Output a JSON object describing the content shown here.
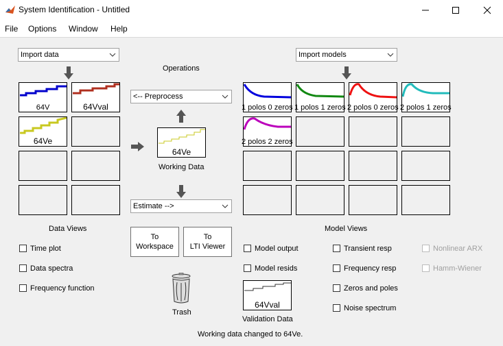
{
  "window": {
    "title": "System Identification - Untitled"
  },
  "menu": [
    "File",
    "Options",
    "Window",
    "Help"
  ],
  "import_data": {
    "label": "Import data"
  },
  "import_models": {
    "label": "Import models"
  },
  "operations": {
    "label": "Operations",
    "preprocess": "<-- Preprocess",
    "estimate": "Estimate -->"
  },
  "data_boards": [
    {
      "name": "64V",
      "color": "#0000cc"
    },
    {
      "name": "64Vval",
      "color": "#b03020"
    },
    {
      "name": "64Ve",
      "color": "#c8c820"
    }
  ],
  "working_data": {
    "name": "64Ve",
    "label": "Working Data",
    "color": "#c8c820"
  },
  "model_boards": [
    {
      "name": "1 polos 0 zeros",
      "color": "#0000dd"
    },
    {
      "name": "1 polos 1 zeros",
      "color": "#118811"
    },
    {
      "name": "2 polos 0 zeros",
      "color": "#ee1111"
    },
    {
      "name": "2 polos 1 zeros",
      "color": "#22bbbb"
    },
    {
      "name": "2 polos 2 zeros",
      "color": "#bb00bb"
    }
  ],
  "data_views": {
    "label": "Data Views",
    "items": [
      "Time plot",
      "Data spectra",
      "Frequency function"
    ]
  },
  "buttons": {
    "to_workspace": [
      "To",
      "Workspace"
    ],
    "to_lti": [
      "To",
      "LTI Viewer"
    ]
  },
  "trash": {
    "label": "Trash"
  },
  "model_views": {
    "label": "Model Views",
    "col1": [
      "Model output",
      "Model resids"
    ],
    "col2": [
      "Transient resp",
      "Frequency resp",
      "Zeros and poles",
      "Noise spectrum"
    ],
    "col3": [
      "Nonlinear ARX",
      "Hamm-Wiener"
    ]
  },
  "validation": {
    "name": "64Vval",
    "label": "Validation Data"
  },
  "status": "Working data changed to 64Ve."
}
